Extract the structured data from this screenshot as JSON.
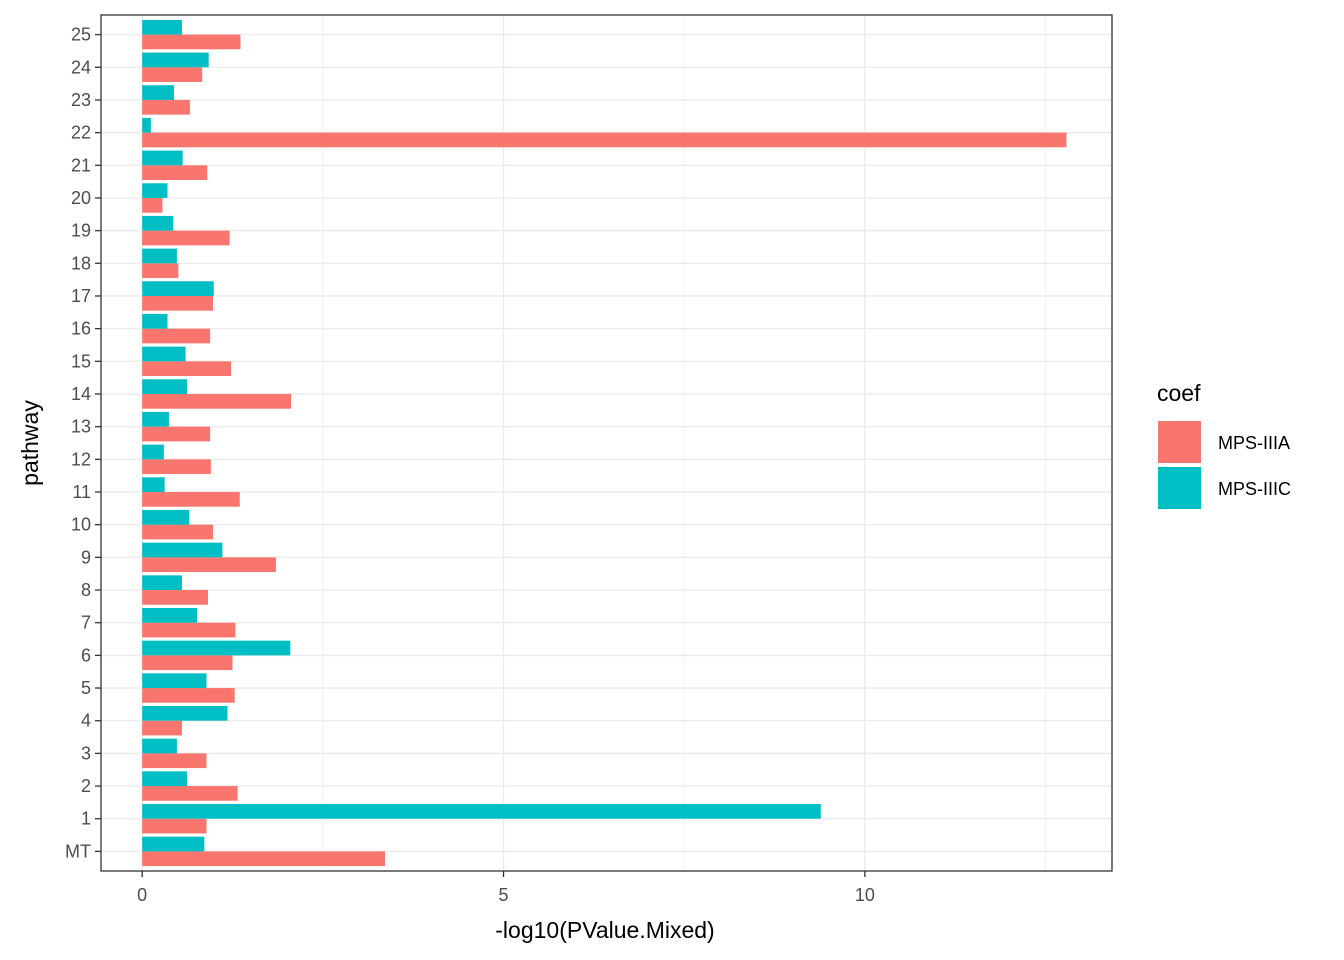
{
  "chart_data": {
    "type": "bar",
    "orientation": "horizontal",
    "xlabel": "-log10(PValue.Mixed)",
    "ylabel": "pathway",
    "xlim": [
      -0.57,
      13.42
    ],
    "xticks": [
      0,
      5,
      10
    ],
    "minor_xticks": [
      2.5,
      7.5,
      12.5
    ],
    "categories": [
      "MT",
      "1",
      "2",
      "3",
      "4",
      "5",
      "6",
      "7",
      "8",
      "9",
      "10",
      "11",
      "12",
      "13",
      "14",
      "15",
      "16",
      "17",
      "18",
      "19",
      "20",
      "21",
      "22",
      "23",
      "24",
      "25"
    ],
    "legend": {
      "title": "coef",
      "placement": "right"
    },
    "grid": true,
    "series": [
      {
        "name": "MPS-IIIA",
        "color": "#F8766D",
        "values": [
          3.36,
          0.89,
          1.32,
          0.89,
          0.55,
          1.28,
          1.25,
          1.29,
          0.91,
          1.85,
          0.98,
          1.35,
          0.95,
          0.94,
          2.06,
          1.23,
          0.94,
          0.98,
          0.5,
          1.21,
          0.28,
          0.9,
          12.79,
          0.66,
          0.83,
          1.36
        ]
      },
      {
        "name": "MPS-IIIC",
        "color": "#00BFC4",
        "values": [
          0.86,
          9.39,
          0.62,
          0.48,
          1.18,
          0.89,
          2.05,
          0.76,
          0.55,
          1.11,
          0.65,
          0.31,
          0.3,
          0.37,
          0.62,
          0.6,
          0.35,
          0.99,
          0.48,
          0.43,
          0.35,
          0.56,
          0.12,
          0.44,
          0.92,
          0.55
        ]
      }
    ]
  }
}
